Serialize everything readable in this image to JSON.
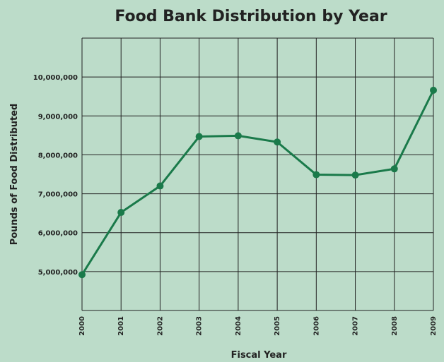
{
  "chart_data": {
    "type": "line",
    "title": "Food Bank Distribution by Year",
    "xlabel": "Fiscal Year",
    "ylabel": "Pounds of Food Distributed",
    "x": [
      "2000",
      "2001",
      "2002",
      "2003",
      "2004",
      "2005",
      "2006",
      "2007",
      "2008",
      "2009"
    ],
    "series": [
      {
        "values": [
          4920000,
          6520000,
          7200000,
          8470000,
          8490000,
          8330000,
          7490000,
          7480000,
          7640000,
          9660000
        ]
      }
    ],
    "ylim": [
      4000000,
      11000000
    ],
    "yticks": [
      5000000,
      6000000,
      7000000,
      8000000,
      9000000,
      10000000
    ],
    "ytick_labels": [
      "5,000,000",
      "6,000,000",
      "7,000,000",
      "8,000,000",
      "9,000,000",
      "10,000,000"
    ],
    "grid": true,
    "colors": {
      "line": "#1a7a4a",
      "grid": "#222222",
      "background": "#bcdcc9"
    }
  }
}
